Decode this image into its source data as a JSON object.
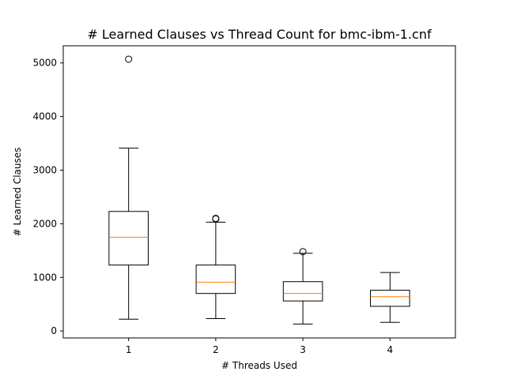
{
  "chart_data": {
    "type": "box",
    "title": "# Learned Clauses vs Thread Count for bmc-ibm-1.cnf",
    "xlabel": "# Threads Used",
    "ylabel": "# Learned Clauses",
    "categories": [
      "1",
      "2",
      "3",
      "4"
    ],
    "yticks": [
      0,
      1000,
      2000,
      3000,
      4000,
      5000
    ],
    "ylim": [
      -130,
      5320
    ],
    "grid": false,
    "colors": {
      "box": "#000000",
      "median": "#ff7f0e",
      "outlier": "#000000"
    },
    "boxes": [
      {
        "category": "1",
        "whisker_low": 220,
        "q1": 1230,
        "median": 1750,
        "q3": 2230,
        "whisker_high": 3410,
        "outliers": [
          5070
        ]
      },
      {
        "category": "2",
        "whisker_low": 230,
        "q1": 700,
        "median": 910,
        "q3": 1230,
        "whisker_high": 2030,
        "outliers": [
          2090,
          2100
        ]
      },
      {
        "category": "3",
        "whisker_low": 130,
        "q1": 560,
        "median": 700,
        "q3": 920,
        "whisker_high": 1450,
        "outliers": [
          1480
        ]
      },
      {
        "category": "4",
        "whisker_low": 160,
        "q1": 460,
        "median": 640,
        "q3": 760,
        "whisker_high": 1090,
        "outliers": []
      }
    ]
  }
}
